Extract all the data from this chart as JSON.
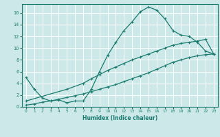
{
  "xlabel": "Humidex (Indice chaleur)",
  "bg_color": "#cce8e8",
  "grid_color": "#ffffff",
  "line_color": "#1a7a6e",
  "xlim": [
    -0.5,
    23.5
  ],
  "ylim": [
    0,
    17.5
  ],
  "xticks": [
    0,
    1,
    2,
    3,
    4,
    5,
    6,
    7,
    8,
    9,
    10,
    11,
    12,
    13,
    14,
    15,
    16,
    17,
    18,
    19,
    20,
    21,
    22,
    23
  ],
  "yticks": [
    0,
    2,
    4,
    6,
    8,
    10,
    12,
    14,
    16
  ],
  "line1_x": [
    0,
    1,
    2,
    3,
    4,
    5,
    6,
    7,
    8,
    9,
    10,
    11,
    12,
    13,
    14,
    15,
    16,
    17,
    18,
    19,
    20,
    21,
    22,
    23
  ],
  "line1_y": [
    5,
    3,
    1.5,
    1.0,
    1.2,
    0.7,
    1.0,
    1.0,
    3.0,
    6.0,
    8.8,
    11.0,
    13.0,
    14.5,
    16.2,
    17.0,
    16.5,
    15.0,
    13.0,
    12.2,
    12.0,
    11.0,
    9.5,
    9.0
  ],
  "line2_x": [
    0,
    5,
    7,
    8,
    9,
    10,
    11,
    12,
    13,
    14,
    15,
    16,
    17,
    18,
    19,
    20,
    21,
    22,
    23
  ],
  "line2_y": [
    1.0,
    3.0,
    4.0,
    4.8,
    5.5,
    6.2,
    6.8,
    7.4,
    8.0,
    8.5,
    9.0,
    9.5,
    10.0,
    10.5,
    10.8,
    11.0,
    11.2,
    11.5,
    9.0
  ],
  "line3_x": [
    0,
    1,
    2,
    3,
    4,
    5,
    6,
    7,
    8,
    9,
    10,
    11,
    12,
    13,
    14,
    15,
    16,
    17,
    18,
    19,
    20,
    21,
    22,
    23
  ],
  "line3_y": [
    0.3,
    0.5,
    0.8,
    1.0,
    1.3,
    1.6,
    1.9,
    2.2,
    2.6,
    3.0,
    3.4,
    3.8,
    4.3,
    4.8,
    5.3,
    5.8,
    6.4,
    7.0,
    7.6,
    8.0,
    8.4,
    8.7,
    8.9,
    9.0
  ]
}
